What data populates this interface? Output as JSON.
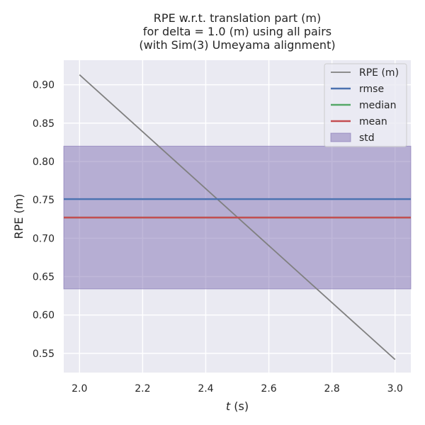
{
  "chart_data": {
    "type": "line",
    "title": [
      "RPE w.r.t. translation part (m)",
      "for delta = 1.0 (m) using all pairs",
      "(with Sim(3) Umeyama alignment)"
    ],
    "xlabel_italic": "t",
    "xlabel_unit": " (s)",
    "ylabel": "RPE (m)",
    "xlim": [
      1.95,
      3.05
    ],
    "ylim": [
      0.525,
      0.932
    ],
    "xticks": [
      "2.0",
      "2.2",
      "2.4",
      "2.6",
      "2.8",
      "3.0"
    ],
    "yticks": [
      "0.55",
      "0.60",
      "0.65",
      "0.70",
      "0.75",
      "0.80",
      "0.85",
      "0.90"
    ],
    "grid": true,
    "legend_position": "top-right",
    "series": [
      {
        "name": "RPE (m)",
        "kind": "line",
        "color": "#808080",
        "x": [
          2.0,
          3.0
        ],
        "y": [
          0.913,
          0.542
        ]
      },
      {
        "name": "rmse",
        "kind": "hline",
        "color": "#4c72b0",
        "value": 0.751
      },
      {
        "name": "median",
        "kind": "hline",
        "color": "#55a868",
        "value": 0.727
      },
      {
        "name": "mean",
        "kind": "hline",
        "color": "#c44e52",
        "value": 0.727
      },
      {
        "name": "std",
        "kind": "band",
        "color": "#8172b3",
        "low": 0.634,
        "high": 0.82
      }
    ]
  },
  "colors": {
    "plot_background": "#eaeaf2",
    "grid": "#ffffff",
    "text": "#262626"
  }
}
